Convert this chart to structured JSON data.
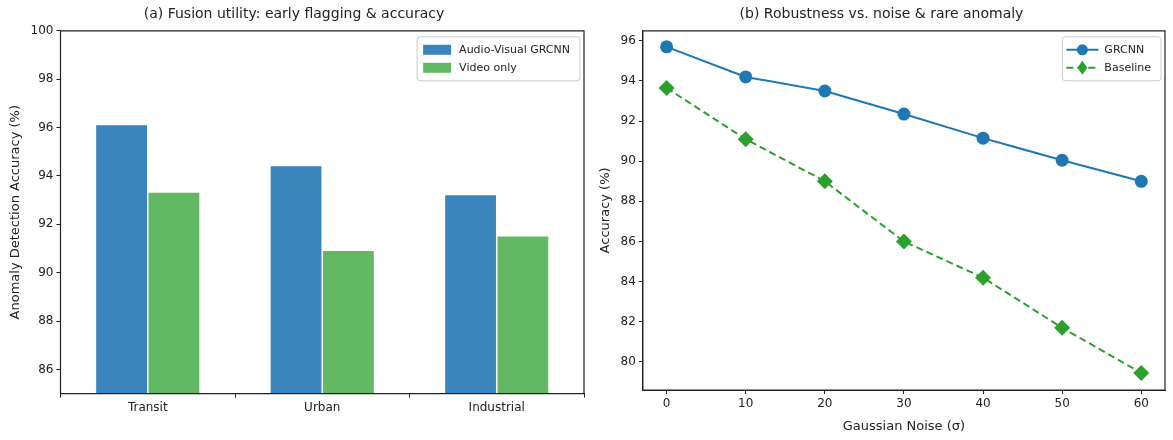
{
  "chart_data": [
    {
      "type": "bar",
      "title": "(a) Fusion utility: early flagging & accuracy",
      "ylabel": "Anomaly Detection Accuracy (%)",
      "categories": [
        "Transit",
        "Urban",
        "Industrial"
      ],
      "series": [
        {
          "name": "Audio-Visual GRCNN",
          "color": "#3a85bd",
          "values": [
            96.1,
            94.4,
            93.2
          ]
        },
        {
          "name": "Video only",
          "color": "#63b963",
          "values": [
            93.3,
            90.9,
            91.5
          ]
        }
      ],
      "ylim": [
        85,
        100
      ],
      "yticks": [
        86,
        88,
        90,
        92,
        94,
        96,
        98,
        100
      ],
      "grid": false,
      "legend": "top right"
    },
    {
      "type": "line",
      "title": "(b) Robustness vs. noise & rare anomaly",
      "xlabel": "Gaussian Noise (σ)",
      "ylabel": "Accuracy (%)",
      "x": [
        0,
        10,
        20,
        30,
        40,
        50,
        60
      ],
      "series": [
        {
          "name": "GRCNN",
          "color": "#1f77b4",
          "marker": "circle",
          "line_style": "solid",
          "values": [
            95.7,
            94.2,
            93.5,
            92.35,
            91.15,
            90.05,
            89.0
          ]
        },
        {
          "name": "Baseline",
          "color": "#2ca02c",
          "marker": "diamond",
          "line_style": "dashed",
          "values": [
            93.65,
            91.1,
            89.0,
            86.0,
            84.2,
            81.7,
            79.45
          ]
        }
      ],
      "xlim": [
        -3,
        63
      ],
      "xticks": [
        0,
        10,
        20,
        30,
        40,
        50,
        60
      ],
      "ylim": [
        78.6,
        96.5
      ],
      "yticks": [
        80,
        82,
        84,
        86,
        88,
        90,
        92,
        94,
        96
      ],
      "grid": false,
      "legend": "top right"
    }
  ]
}
